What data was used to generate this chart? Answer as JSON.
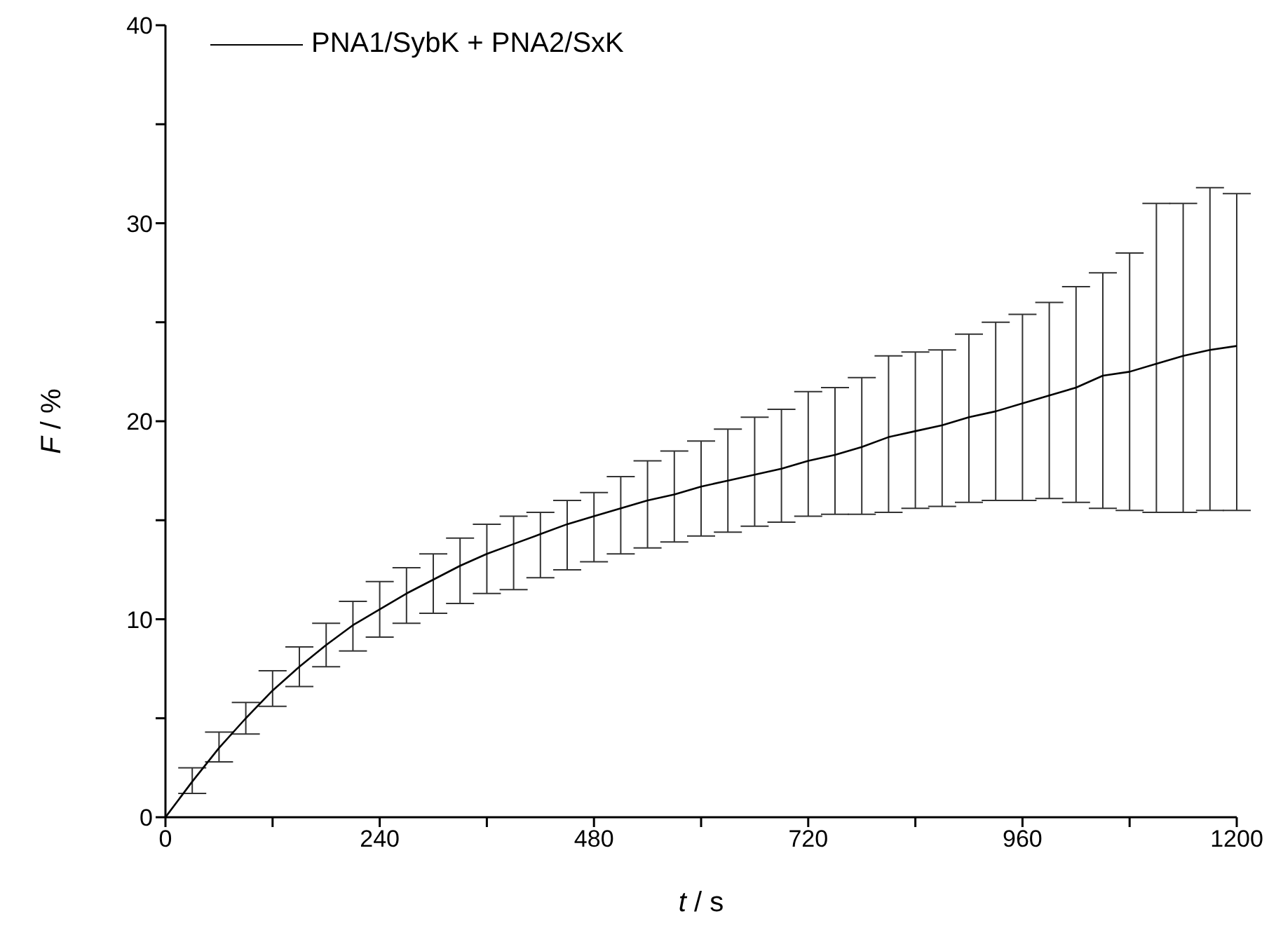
{
  "chart_data": {
    "type": "line",
    "xlabel": "t / s",
    "ylabel": "F / %",
    "x": [
      0,
      30,
      60,
      90,
      120,
      150,
      180,
      210,
      240,
      270,
      300,
      330,
      360,
      390,
      420,
      450,
      480,
      510,
      540,
      570,
      600,
      630,
      660,
      690,
      720,
      750,
      780,
      810,
      840,
      870,
      900,
      930,
      960,
      990,
      1020,
      1050,
      1080,
      1110,
      1140,
      1170,
      1200
    ],
    "series": [
      {
        "name": "PNA1/SybK + PNA2/SxK",
        "color": "#000000",
        "values": [
          0,
          1.8,
          3.5,
          5.0,
          6.4,
          7.6,
          8.7,
          9.7,
          10.5,
          11.3,
          12.0,
          12.7,
          13.3,
          13.8,
          14.3,
          14.8,
          15.2,
          15.6,
          16.0,
          16.3,
          16.7,
          17.0,
          17.3,
          17.6,
          18.0,
          18.3,
          18.7,
          19.2,
          19.5,
          19.8,
          20.2,
          20.5,
          20.9,
          21.3,
          21.7,
          22.3,
          22.5,
          22.9,
          23.3,
          23.6,
          23.8
        ],
        "errors": [
          null,
          [
            1.2,
            2.5
          ],
          [
            2.8,
            4.3
          ],
          [
            4.2,
            5.8
          ],
          [
            5.6,
            7.4
          ],
          [
            6.6,
            8.6
          ],
          [
            7.6,
            9.8
          ],
          [
            8.4,
            10.9
          ],
          [
            9.1,
            11.9
          ],
          [
            9.8,
            12.6
          ],
          [
            10.3,
            13.3
          ],
          [
            10.8,
            14.1
          ],
          [
            11.3,
            14.8
          ],
          [
            11.5,
            15.2
          ],
          [
            12.1,
            15.4
          ],
          [
            12.5,
            16.0
          ],
          [
            12.9,
            16.4
          ],
          [
            13.3,
            17.2
          ],
          [
            13.6,
            18.0
          ],
          [
            13.9,
            18.5
          ],
          [
            14.2,
            19.0
          ],
          [
            14.4,
            19.6
          ],
          [
            14.7,
            20.2
          ],
          [
            14.9,
            20.6
          ],
          [
            15.2,
            21.5
          ],
          [
            15.3,
            21.7
          ],
          [
            15.3,
            22.2
          ],
          [
            15.4,
            23.3
          ],
          [
            15.6,
            23.5
          ],
          [
            15.7,
            23.6
          ],
          [
            15.9,
            24.4
          ],
          [
            16.0,
            25.0
          ],
          [
            16.0,
            25.4
          ],
          [
            16.1,
            26.0
          ],
          [
            15.9,
            26.8
          ],
          [
            15.6,
            27.5
          ],
          [
            15.5,
            28.5
          ],
          [
            15.4,
            31.0
          ],
          [
            15.4,
            31.0
          ],
          [
            15.5,
            31.8
          ],
          [
            15.5,
            31.5
          ]
        ]
      }
    ],
    "xlim": [
      0,
      1200
    ],
    "xticks": [
      0,
      {
        "value": 120,
        "label": null
      },
      240,
      {
        "value": 360,
        "label": null
      },
      480,
      {
        "value": 600,
        "label": null
      },
      720,
      {
        "value": 840,
        "label": null
      },
      960,
      {
        "value": 1080,
        "label": null
      },
      1200
    ],
    "ylim": [
      0,
      40
    ],
    "yticks": [
      0,
      {
        "value": 5,
        "label": null
      },
      10,
      {
        "value": 15,
        "label": null
      },
      20,
      {
        "value": 25,
        "label": null
      },
      30,
      {
        "value": 35,
        "label": null
      },
      40
    ],
    "legend": "top left",
    "grid": false,
    "marker": "none",
    "line_style": "solid"
  }
}
